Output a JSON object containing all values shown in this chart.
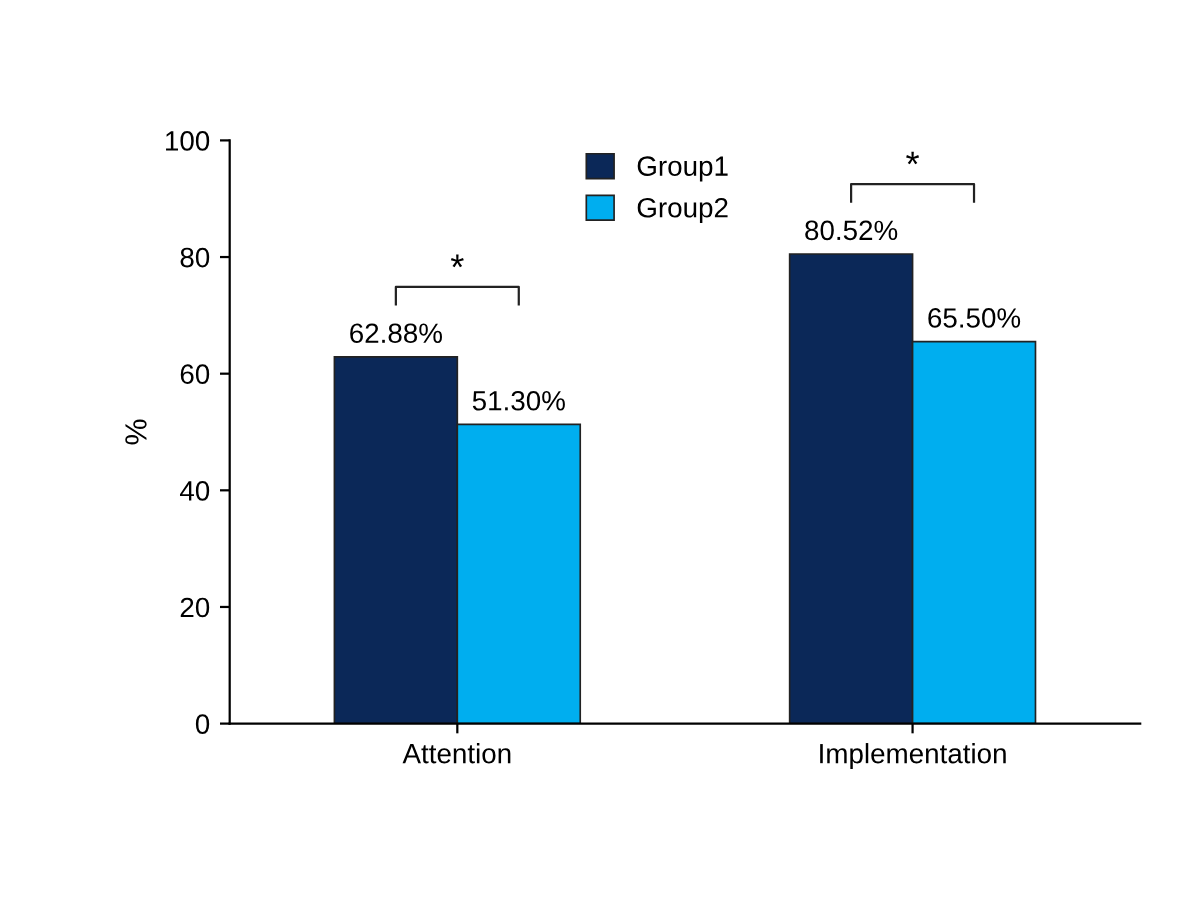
{
  "chart_data": {
    "type": "bar",
    "ylabel": "%",
    "categories": [
      "Attention",
      "Implementation"
    ],
    "series": [
      {
        "name": "Group1",
        "color": "#0b2858",
        "values": [
          62.88,
          80.52
        ],
        "value_labels": [
          "62.88%",
          "80.52%"
        ]
      },
      {
        "name": "Group2",
        "color": "#00aeef",
        "values": [
          51.3,
          65.5
        ],
        "value_labels": [
          "51.30%",
          "65.50%"
        ]
      }
    ],
    "ylim": [
      0,
      100
    ],
    "yticks": [
      0,
      20,
      40,
      60,
      80,
      100
    ],
    "grid": false,
    "legend": "top",
    "annotations": [
      "*",
      "*"
    ]
  }
}
